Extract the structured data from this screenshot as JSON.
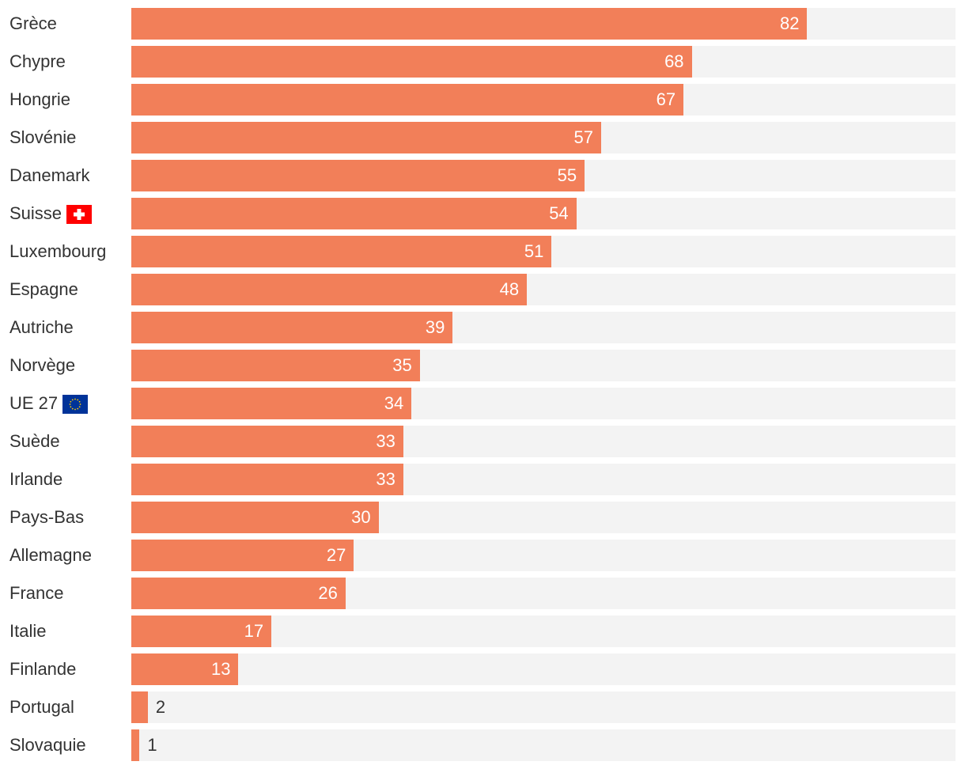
{
  "chart_data": {
    "type": "bar",
    "orientation": "horizontal",
    "categories": [
      "Grèce",
      "Chypre",
      "Hongrie",
      "Slovénie",
      "Danemark",
      "Suisse",
      "Luxembourg",
      "Espagne",
      "Autriche",
      "Norvège",
      "UE 27",
      "Suède",
      "Irlande",
      "Pays-Bas",
      "Allemagne",
      "France",
      "Italie",
      "Finlande",
      "Portugal",
      "Slovaquie"
    ],
    "values": [
      82,
      68,
      67,
      57,
      55,
      54,
      51,
      48,
      39,
      35,
      34,
      33,
      33,
      30,
      27,
      26,
      17,
      13,
      2,
      1
    ],
    "flags": {
      "Suisse": "swiss-flag",
      "UE 27": "eu-flag"
    },
    "xlim": [
      0,
      100
    ],
    "colors": {
      "bar": "#f27f59",
      "track": "#f3f3f3",
      "text": "#333333",
      "value_inside": "#ffffff"
    }
  }
}
